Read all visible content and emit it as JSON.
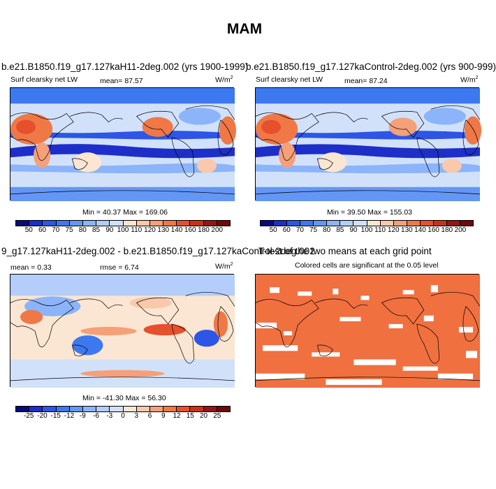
{
  "title": "MAM",
  "panels": {
    "p1": {
      "title": "b.e21.B1850.f19_g17.127kaH11-2deg.002 (yrs 1900-1999)",
      "left_label": "Surf clearsky net LW",
      "center_label": "mean=  87.57",
      "units": "W/m",
      "units_exp": "2",
      "minmax": "Min =  40.37 Max = 169.06"
    },
    "p2": {
      "title": "b.e21.B1850.f19_g17.127kaControl-2deg.002 (yrs 900-999)",
      "left_label": "Surf clearsky net LW",
      "center_label": "mean=  87.24",
      "units": "W/m",
      "units_exp": "2",
      "minmax": "Min =  39.50 Max = 155.03"
    },
    "p3": {
      "title": "9_g17.127kaH11-2deg.002 - b.e21.B1850.f19_g17.127kaControl-2deg.002",
      "overlap_title": "T-test of the two means at each grid point",
      "left_label": "mean =   0.33",
      "center_label": "rmse =   6.74",
      "units": "W/m",
      "units_exp": "2",
      "minmax": "Min = -41.30 Max =  56.30"
    },
    "p4": {
      "title": "T-test of the two means at each grid point",
      "subtitle": "Colored cells are significant at the 0.05 level",
      "fill_color": "#f07040"
    }
  },
  "colorbar_abs": {
    "colors": [
      "#0a0a7a",
      "#1e2ec8",
      "#2d55e6",
      "#3c78f0",
      "#6496f5",
      "#8cb4fa",
      "#b4cdfa",
      "#d2e1fa",
      "#fae6d2",
      "#fac8aa",
      "#f5a078",
      "#f07846",
      "#e6502d",
      "#c83219",
      "#961414",
      "#6e0a0a"
    ],
    "ticks": [
      "50",
      "60",
      "70",
      "75",
      "80",
      "85",
      "90",
      "100",
      "110",
      "120",
      "130",
      "140",
      "160",
      "180",
      "200"
    ]
  },
  "colorbar_diff": {
    "colors": [
      "#0a0a7a",
      "#1e2ec8",
      "#2d55e6",
      "#3c78f0",
      "#6496f5",
      "#8cb4fa",
      "#b4cdfa",
      "#d2e1fa",
      "#fae6d2",
      "#fac8aa",
      "#f5a078",
      "#f07846",
      "#e6502d",
      "#c83219",
      "#961414",
      "#6e0a0a"
    ],
    "ticks": [
      "-25",
      "-20",
      "-15",
      "-12",
      "-9",
      "-6",
      "-3",
      "0",
      "3",
      "6",
      "9",
      "12",
      "15",
      "20",
      "25"
    ]
  }
}
